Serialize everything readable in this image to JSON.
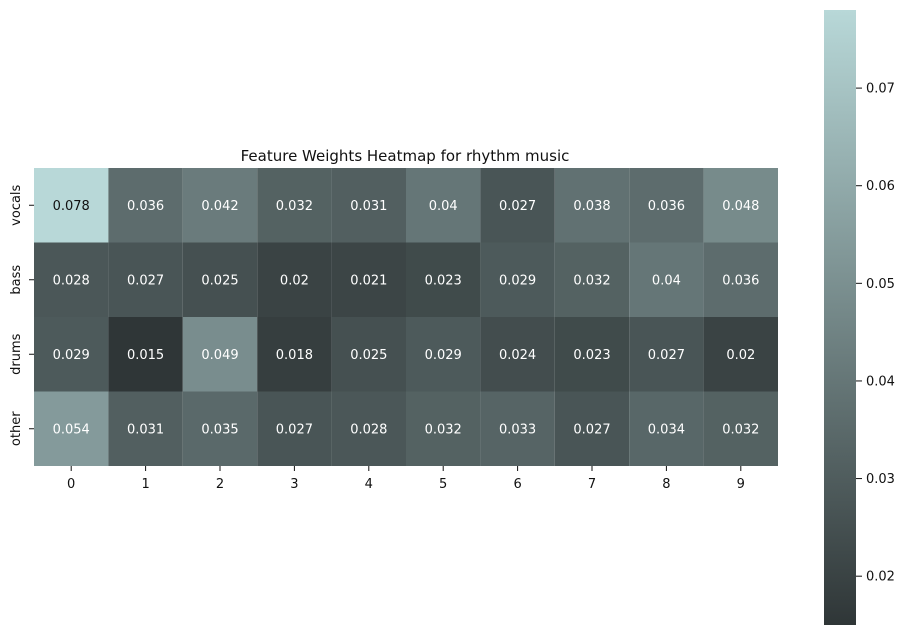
{
  "chart_data": {
    "type": "heatmap",
    "title": "Feature Weights Heatmap for rhythm music",
    "xlabel": "",
    "ylabel": "",
    "x_categories": [
      "0",
      "1",
      "2",
      "3",
      "4",
      "5",
      "6",
      "7",
      "8",
      "9"
    ],
    "y_categories": [
      "vocals",
      "bass",
      "drums",
      "other"
    ],
    "values": [
      [
        0.078,
        0.036,
        0.042,
        0.032,
        0.031,
        0.04,
        0.027,
        0.038,
        0.036,
        0.048
      ],
      [
        0.028,
        0.027,
        0.025,
        0.02,
        0.021,
        0.023,
        0.029,
        0.032,
        0.04,
        0.036
      ],
      [
        0.029,
        0.015,
        0.049,
        0.018,
        0.025,
        0.029,
        0.024,
        0.023,
        0.027,
        0.02
      ],
      [
        0.054,
        0.031,
        0.035,
        0.027,
        0.028,
        0.032,
        0.033,
        0.027,
        0.034,
        0.032
      ]
    ],
    "value_labels": [
      [
        "0.078",
        "0.036",
        "0.042",
        "0.032",
        "0.031",
        "0.04",
        "0.027",
        "0.038",
        "0.036",
        "0.048"
      ],
      [
        "0.028",
        "0.027",
        "0.025",
        "0.02",
        "0.021",
        "0.023",
        "0.029",
        "0.032",
        "0.04",
        "0.036"
      ],
      [
        "0.029",
        "0.015",
        "0.049",
        "0.018",
        "0.025",
        "0.029",
        "0.024",
        "0.023",
        "0.027",
        "0.02"
      ],
      [
        "0.054",
        "0.031",
        "0.035",
        "0.027",
        "0.028",
        "0.032",
        "0.033",
        "0.027",
        "0.034",
        "0.032"
      ]
    ],
    "colorbar": {
      "min": 0.015,
      "max": 0.078,
      "ticks": [
        0.02,
        0.03,
        0.04,
        0.05,
        0.06,
        0.07
      ],
      "tick_labels": [
        "0.02",
        "0.03",
        "0.04",
        "0.05",
        "0.06",
        "0.07"
      ],
      "colors": {
        "low": "#2f3637",
        "high": "#b8d8d8"
      }
    },
    "grid": false,
    "legend": "colorbar-right"
  }
}
